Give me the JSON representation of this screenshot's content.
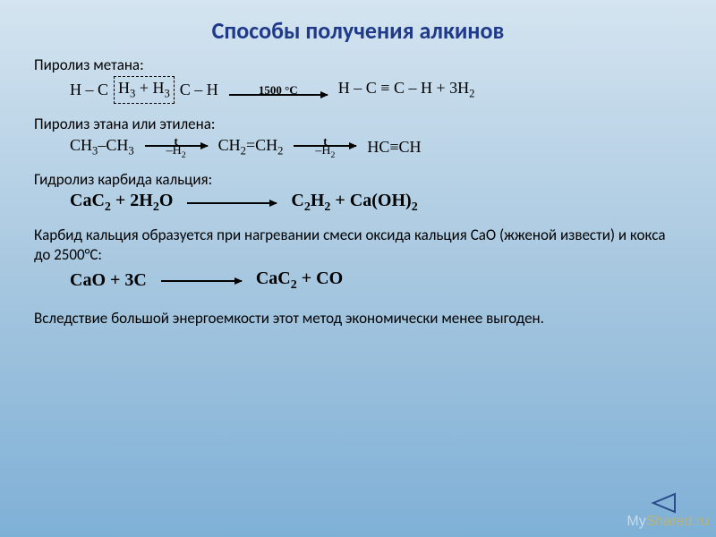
{
  "title": {
    "text": "Способы получения алкинов",
    "color": "#1f3a8a"
  },
  "sections": {
    "s1": {
      "label": "Пиролиз метана:",
      "eq": {
        "lhs_pre": "H – C",
        "box": "H<sub>3</sub>  +  H<sub>3</sub>",
        "lhs_post": "C – H",
        "arrow_top": "1500 °C",
        "rhs": "H – C ≡ C – H  +  3H<sub>2</sub>"
      }
    },
    "s2": {
      "label": "Пиролиз этана или этилена:",
      "eq": {
        "a": "CH<sub>3</sub>–CH<sub>3</sub>",
        "b": "CH<sub>2</sub>=CH<sub>2</sub>",
        "c": "HC≡CH",
        "arrow_top": "t",
        "arrow_bot": "–H<sub>2</sub>"
      }
    },
    "s3": {
      "label": "Гидролиз карбида кальция:",
      "eq": {
        "lhs": "CaC<sub>2</sub> + 2H<sub>2</sub>O",
        "rhs": "C<sub>2</sub>H<sub>2</sub>   +   Ca(OH)<sub>2</sub>"
      }
    },
    "s4": {
      "para": "Карбид кальция образуется при нагревании смеси оксида кальция СаО (жженой извести) и кокса до 2500°C:",
      "eq": {
        "lhs": "CaO  +  3C",
        "rhs": "CaC<sub>2</sub>  +  CO"
      }
    },
    "s5": {
      "para": "Вследствие большой энергоемкости этот метод экономически менее выгоден."
    }
  },
  "nav": {
    "color": "#2a4a8a"
  },
  "watermark": {
    "left": "My",
    "right": "Shared.ru"
  }
}
